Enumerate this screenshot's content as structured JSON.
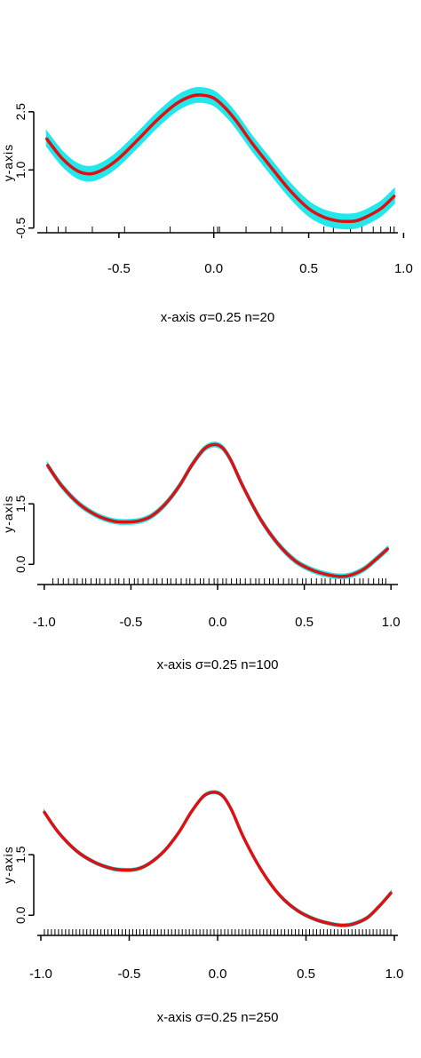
{
  "chart_data": [
    {
      "type": "line",
      "caption": "x-axis    σ=0.25     n=20",
      "ylabel": "y-axis",
      "xlim": [
        -0.93,
        0.97
      ],
      "ylim": [
        -0.62,
        3.0
      ],
      "xticks": [
        -0.5,
        0.0,
        0.5,
        1.0
      ],
      "xtick_labels": [
        "-0.5",
        "0.0",
        "0.5",
        "1.0"
      ],
      "yticks": [
        -0.5,
        1.0,
        2.5
      ],
      "ytick_labels": [
        "-0.5",
        "1.0",
        "2.5"
      ],
      "colors": {
        "band": "#22e8ec",
        "line": "#dd1111",
        "axis": "#000000"
      },
      "band_halfwidth": 0.18,
      "series": [
        {
          "x": [
            -0.88,
            -0.8,
            -0.72,
            -0.65,
            -0.58,
            -0.5,
            -0.4,
            -0.3,
            -0.2,
            -0.12,
            -0.06,
            0.0,
            0.06,
            0.12,
            0.2,
            0.3,
            0.4,
            0.5,
            0.58,
            0.65,
            0.7,
            0.75,
            0.8,
            0.88,
            0.95
          ],
          "y": [
            1.8,
            1.3,
            0.98,
            0.9,
            1.02,
            1.3,
            1.78,
            2.28,
            2.7,
            2.9,
            2.93,
            2.85,
            2.6,
            2.25,
            1.7,
            1.08,
            0.48,
            0.0,
            -0.22,
            -0.31,
            -0.33,
            -0.31,
            -0.22,
            0.0,
            0.32
          ]
        }
      ],
      "rug": [
        -0.88,
        -0.82,
        -0.78,
        -0.64,
        -0.47,
        -0.23,
        0.0,
        0.02,
        0.03,
        0.17,
        0.3,
        0.36,
        0.58,
        0.63,
        0.72,
        0.78,
        0.84,
        0.88,
        0.93,
        0.95
      ]
    },
    {
      "type": "line",
      "caption": "x-axis    σ=0.25     n=100",
      "ylabel": "y-axis",
      "xlim": [
        -1.04,
        1.04
      ],
      "ylim": [
        -0.5,
        3.0
      ],
      "xticks": [
        -1.0,
        -0.5,
        0.0,
        0.5,
        1.0
      ],
      "xtick_labels": [
        "-1.0",
        "-0.5",
        "0.0",
        "0.5",
        "1.0"
      ],
      "yticks": [
        0.0,
        1.5
      ],
      "ytick_labels": [
        "0.0",
        "1.5"
      ],
      "colors": {
        "band": "#22e8ec",
        "line": "#dd1111",
        "axis": "#000000"
      },
      "band_halfwidth": 0.05,
      "series": [
        {
          "x": [
            -0.98,
            -0.9,
            -0.8,
            -0.7,
            -0.6,
            -0.52,
            -0.45,
            -0.38,
            -0.3,
            -0.22,
            -0.15,
            -0.08,
            -0.02,
            0.03,
            0.08,
            0.15,
            0.25,
            0.35,
            0.45,
            0.55,
            0.65,
            0.72,
            0.78,
            0.85,
            0.92,
            0.98
          ],
          "y": [
            2.45,
            1.95,
            1.5,
            1.22,
            1.07,
            1.05,
            1.08,
            1.2,
            1.5,
            1.95,
            2.45,
            2.85,
            2.97,
            2.88,
            2.55,
            1.9,
            1.1,
            0.5,
            0.08,
            -0.15,
            -0.27,
            -0.3,
            -0.25,
            -0.1,
            0.15,
            0.38
          ]
        }
      ],
      "rug": [
        -0.95,
        -0.92,
        -0.89,
        -0.86,
        -0.83,
        -0.81,
        -0.78,
        -0.76,
        -0.73,
        -0.7,
        -0.68,
        -0.65,
        -0.62,
        -0.59,
        -0.57,
        -0.54,
        -0.51,
        -0.48,
        -0.46,
        -0.43,
        -0.4,
        -0.37,
        -0.35,
        -0.32,
        -0.29,
        -0.27,
        -0.24,
        -0.21,
        -0.18,
        -0.16,
        -0.13,
        -0.1,
        -0.08,
        -0.05,
        -0.02,
        0.0,
        0.03,
        0.05,
        0.08,
        0.11,
        0.13,
        0.16,
        0.19,
        0.22,
        0.24,
        0.27,
        0.3,
        0.32,
        0.35,
        0.38,
        0.41,
        0.43,
        0.46,
        0.49,
        0.51,
        0.54,
        0.57,
        0.6,
        0.62,
        0.65,
        0.68,
        0.71,
        0.73,
        0.76,
        0.79,
        0.82,
        0.84,
        0.87,
        0.9,
        0.93,
        0.95,
        0.97
      ]
    },
    {
      "type": "line",
      "caption": "x-axis    σ=0.25     n=250",
      "ylabel": "y-axis",
      "xlim": [
        -1.02,
        1.02
      ],
      "ylim": [
        -0.5,
        3.0
      ],
      "xticks": [
        -1.0,
        -0.5,
        0.0,
        0.5,
        1.0
      ],
      "xtick_labels": [
        "-1.0",
        "-0.5",
        "0.0",
        "0.5",
        "1.0"
      ],
      "yticks": [
        0.0,
        1.5
      ],
      "ytick_labels": [
        "0.0",
        "1.5"
      ],
      "colors": {
        "band": "#22e8ec",
        "line": "#dd1111",
        "axis": "#000000"
      },
      "band_halfwidth": 0.03,
      "series": [
        {
          "x": [
            -0.98,
            -0.9,
            -0.8,
            -0.7,
            -0.6,
            -0.52,
            -0.45,
            -0.38,
            -0.3,
            -0.22,
            -0.15,
            -0.08,
            -0.02,
            0.03,
            0.08,
            0.15,
            0.25,
            0.35,
            0.45,
            0.55,
            0.65,
            0.72,
            0.78,
            0.85,
            0.92,
            0.98
          ],
          "y": [
            2.55,
            2.05,
            1.6,
            1.32,
            1.16,
            1.12,
            1.15,
            1.3,
            1.6,
            2.05,
            2.55,
            2.95,
            3.05,
            2.95,
            2.6,
            1.9,
            1.1,
            0.5,
            0.12,
            -0.1,
            -0.22,
            -0.25,
            -0.2,
            -0.05,
            0.25,
            0.55
          ]
        }
      ],
      "rug": [
        -0.98,
        -0.96,
        -0.94,
        -0.92,
        -0.9,
        -0.88,
        -0.86,
        -0.84,
        -0.82,
        -0.8,
        -0.78,
        -0.76,
        -0.74,
        -0.72,
        -0.7,
        -0.68,
        -0.66,
        -0.64,
        -0.62,
        -0.6,
        -0.58,
        -0.56,
        -0.54,
        -0.52,
        -0.5,
        -0.48,
        -0.46,
        -0.44,
        -0.42,
        -0.4,
        -0.38,
        -0.36,
        -0.34,
        -0.32,
        -0.3,
        -0.28,
        -0.26,
        -0.24,
        -0.22,
        -0.2,
        -0.18,
        -0.16,
        -0.14,
        -0.12,
        -0.1,
        -0.08,
        -0.06,
        -0.04,
        -0.02,
        0.0,
        0.02,
        0.04,
        0.06,
        0.08,
        0.1,
        0.12,
        0.14,
        0.16,
        0.18,
        0.2,
        0.22,
        0.24,
        0.26,
        0.28,
        0.3,
        0.32,
        0.34,
        0.36,
        0.38,
        0.4,
        0.42,
        0.44,
        0.46,
        0.48,
        0.5,
        0.52,
        0.54,
        0.56,
        0.58,
        0.6,
        0.62,
        0.64,
        0.66,
        0.68,
        0.7,
        0.72,
        0.74,
        0.76,
        0.78,
        0.8,
        0.82,
        0.84,
        0.86,
        0.88,
        0.9,
        0.92,
        0.94,
        0.96,
        0.98
      ]
    }
  ]
}
